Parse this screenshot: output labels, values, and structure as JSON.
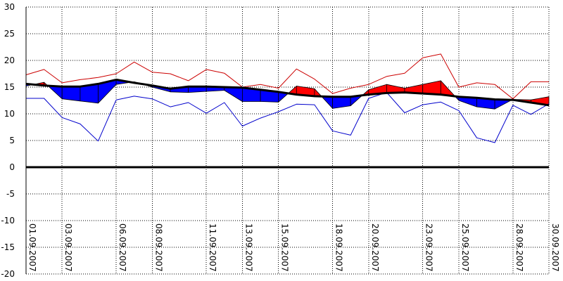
{
  "chart_data": {
    "type": "line",
    "title": "",
    "xlabel": "",
    "ylabel": "",
    "ylim": [
      -20,
      30
    ],
    "y_ticks": [
      30,
      25,
      20,
      15,
      10,
      5,
      0,
      -5,
      -10,
      -15,
      -20
    ],
    "grid": true,
    "x": [
      "01.09.2007",
      "02.09.2007",
      "03.09.2007",
      "04.09.2007",
      "05.09.2007",
      "06.09.2007",
      "07.09.2007",
      "08.09.2007",
      "09.09.2007",
      "10.09.2007",
      "11.09.2007",
      "12.09.2007",
      "13.09.2007",
      "14.09.2007",
      "15.09.2007",
      "16.09.2007",
      "17.09.2007",
      "18.09.2007",
      "19.09.2007",
      "20.09.2007",
      "21.09.2007",
      "22.09.2007",
      "23.09.2007",
      "24.09.2007",
      "25.09.2007",
      "26.09.2007",
      "27.09.2007",
      "28.09.2007",
      "29.09.2007",
      "30.09.2007"
    ],
    "x_tick_labels": [
      "01.09.2007",
      "03.09.2007",
      "06.09.2007",
      "08.09.2007",
      "11.09.2007",
      "13.09.2007",
      "15.09.2007",
      "18.09.2007",
      "20.09.2007",
      "23.09.2007",
      "25.09.2007",
      "28.09.2007",
      "30.09.2007"
    ],
    "series": [
      {
        "values": [
          17.3,
          18.3,
          15.8,
          16.4,
          16.8,
          17.5,
          19.7,
          17.8,
          17.5,
          16.2,
          18.3,
          17.6,
          15.0,
          15.5,
          14.8,
          18.4,
          16.5,
          13.8,
          14.8,
          15.5,
          17.0,
          17.6,
          20.5,
          21.2,
          15.0,
          15.8,
          15.5,
          12.8,
          16.0,
          16.0
        ]
      },
      {
        "values": [
          15.2,
          15.9,
          12.8,
          12.4,
          12.0,
          15.5,
          16.0,
          15.0,
          14.1,
          14.0,
          14.2,
          14.4,
          12.3,
          12.3,
          12.2,
          15.2,
          14.7,
          11.0,
          11.5,
          14.5,
          15.5,
          14.8,
          15.5,
          16.2,
          12.5,
          11.3,
          10.9,
          12.7,
          12.6,
          13.2
        ]
      },
      {
        "values": [
          15.6,
          15.3,
          15.1,
          15.1,
          15.6,
          16.4,
          15.8,
          15.3,
          14.7,
          15.1,
          15.1,
          15.0,
          14.9,
          14.5,
          14.1,
          13.6,
          13.3,
          13.2,
          13.2,
          13.6,
          13.9,
          14.0,
          13.8,
          13.6,
          13.2,
          13.0,
          12.7,
          12.6,
          12.1,
          11.6
        ]
      },
      {
        "values": [
          12.9,
          12.9,
          9.3,
          8.1,
          4.9,
          12.6,
          13.3,
          12.8,
          11.3,
          12.1,
          10.1,
          12.1,
          7.7,
          9.2,
          10.4,
          11.8,
          11.7,
          6.8,
          6.0,
          12.9,
          14.0,
          10.2,
          11.7,
          12.2,
          10.6,
          5.5,
          4.6,
          11.6,
          9.9,
          11.9
        ]
      }
    ],
    "colors": {
      "above_fill": "#ff0000",
      "below_fill": "#0000ff",
      "max_line": "#cc0000",
      "min_line": "#0000cc",
      "normal_line": "#000000",
      "zero_line": "#000000",
      "grid": "#000000"
    }
  }
}
